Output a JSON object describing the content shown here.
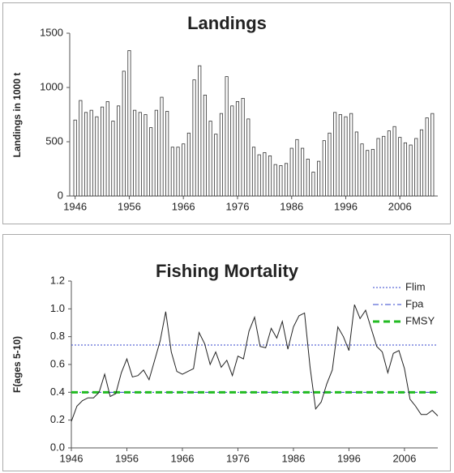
{
  "chart_data": [
    {
      "type": "bar",
      "title": "Landings",
      "y_label": "Landings in 1000 t",
      "color": "#ffffff",
      "edge_color": "#333333",
      "x": [
        1946,
        1947,
        1948,
        1949,
        1950,
        1951,
        1952,
        1953,
        1954,
        1955,
        1956,
        1957,
        1958,
        1959,
        1960,
        1961,
        1962,
        1963,
        1964,
        1965,
        1966,
        1967,
        1968,
        1969,
        1970,
        1971,
        1972,
        1973,
        1974,
        1975,
        1976,
        1977,
        1978,
        1979,
        1980,
        1981,
        1982,
        1983,
        1984,
        1985,
        1986,
        1987,
        1988,
        1989,
        1990,
        1991,
        1992,
        1993,
        1994,
        1995,
        1996,
        1997,
        1998,
        1999,
        2000,
        2001,
        2002,
        2003,
        2004,
        2005,
        2006,
        2007,
        2008,
        2009,
        2010,
        2011,
        2012
      ],
      "values": [
        700,
        880,
        770,
        790,
        730,
        820,
        870,
        690,
        830,
        1150,
        1340,
        790,
        770,
        750,
        630,
        790,
        910,
        780,
        450,
        450,
        480,
        580,
        1070,
        1200,
        930,
        690,
        570,
        760,
        1100,
        830,
        870,
        900,
        710,
        450,
        380,
        400,
        370,
        290,
        280,
        300,
        440,
        520,
        440,
        340,
        220,
        320,
        510,
        580,
        770,
        750,
        730,
        760,
        590,
        480,
        420,
        430,
        530,
        550,
        600,
        640,
        540,
        490,
        470,
        530,
        610,
        720,
        760
      ],
      "xlim": [
        1945,
        2013
      ],
      "xticks": [
        1946,
        1956,
        1966,
        1976,
        1986,
        1996,
        2006
      ],
      "ylim": [
        0,
        1500
      ],
      "yticks": [
        0,
        500,
        1000,
        1500
      ],
      "grid": false
    },
    {
      "type": "line",
      "title": "Fishing Mortality",
      "y_label": "F(ages 5-10)",
      "legend": "upper right",
      "x": [
        1946,
        1947,
        1948,
        1949,
        1950,
        1951,
        1952,
        1953,
        1954,
        1955,
        1956,
        1957,
        1958,
        1959,
        1960,
        1961,
        1962,
        1963,
        1964,
        1965,
        1966,
        1967,
        1968,
        1969,
        1970,
        1971,
        1972,
        1973,
        1974,
        1975,
        1976,
        1977,
        1978,
        1979,
        1980,
        1981,
        1982,
        1983,
        1984,
        1985,
        1986,
        1987,
        1988,
        1989,
        1990,
        1991,
        1992,
        1993,
        1994,
        1995,
        1996,
        1997,
        1998,
        1999,
        2000,
        2001,
        2002,
        2003,
        2004,
        2005,
        2006,
        2007,
        2008,
        2009,
        2010,
        2011,
        2012
      ],
      "series": [
        {
          "color": "#222222",
          "values": [
            0.19,
            0.3,
            0.34,
            0.36,
            0.36,
            0.4,
            0.53,
            0.37,
            0.39,
            0.54,
            0.64,
            0.51,
            0.52,
            0.56,
            0.49,
            0.63,
            0.77,
            0.98,
            0.69,
            0.55,
            0.53,
            0.55,
            0.57,
            0.83,
            0.75,
            0.6,
            0.69,
            0.58,
            0.63,
            0.52,
            0.66,
            0.64,
            0.84,
            0.94,
            0.73,
            0.72,
            0.86,
            0.79,
            0.91,
            0.71,
            0.87,
            0.95,
            0.97,
            0.58,
            0.28,
            0.33,
            0.46,
            0.56,
            0.87,
            0.8,
            0.7,
            1.03,
            0.93,
            0.99,
            0.86,
            0.73,
            0.69,
            0.54,
            0.68,
            0.7,
            0.57,
            0.35,
            0.3,
            0.24,
            0.24,
            0.27,
            0.23
          ]
        }
      ],
      "reference_lines": [
        {
          "name": "Flim",
          "value": 0.74,
          "color": "#3344cc",
          "dash": "dotted"
        },
        {
          "name": "Fpa",
          "value": 0.4,
          "color": "#3344cc",
          "dash": "dashdot"
        },
        {
          "name": "FMSY",
          "value": 0.4,
          "color": "#22bb22",
          "dash": "dashed"
        }
      ],
      "xlim": [
        1946,
        2012
      ],
      "xticks": [
        1946,
        1956,
        1966,
        1976,
        1986,
        1996,
        2006
      ],
      "ylim": [
        0,
        1.2
      ],
      "yticks": [
        {
          "value": 0,
          "label": "0.0"
        },
        0.2,
        0.4,
        0.6,
        0.8,
        {
          "value": 1,
          "label": "1.0"
        },
        1.2
      ],
      "grid": false
    }
  ]
}
